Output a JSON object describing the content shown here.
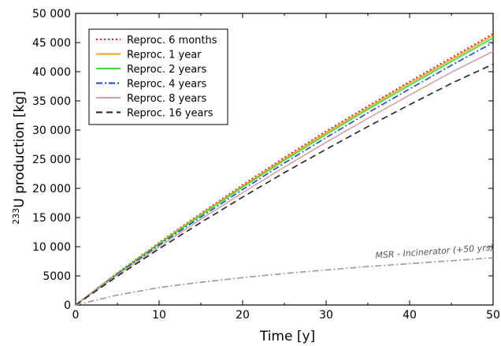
{
  "chart_data": {
    "type": "line",
    "xlabel": "Time [y]",
    "ylabel_sup": "233",
    "ylabel": "U production [kg]",
    "xlim": [
      0,
      50
    ],
    "ylim": [
      0,
      50000
    ],
    "x_ticks": [
      0,
      10,
      20,
      30,
      40,
      50
    ],
    "y_ticks": [
      0,
      5000,
      10000,
      15000,
      20000,
      25000,
      30000,
      35000,
      40000,
      45000,
      50000
    ],
    "x_tick_labels": [
      "0",
      "10",
      "20",
      "30",
      "40",
      "50"
    ],
    "y_tick_labels": [
      "0",
      "5000",
      "10 000",
      "15 000",
      "20 000",
      "25 000",
      "30 000",
      "35 000",
      "40 000",
      "45 000",
      "50 000"
    ],
    "grid": false,
    "legend_position": "top-left",
    "x": [
      0,
      5,
      10,
      15,
      20,
      25,
      30,
      35,
      40,
      45,
      50
    ],
    "series": [
      {
        "name": "Reproc. 6 months",
        "color": "#e8231e",
        "style": "dotted",
        "values": [
          0,
          5500,
          10700,
          15700,
          20600,
          25300,
          29800,
          34100,
          38300,
          42400,
          46500
        ]
      },
      {
        "name": "Reproc. 1 year",
        "color": "#f5a31c",
        "style": "solid",
        "values": [
          0,
          5450,
          10600,
          15550,
          20400,
          25050,
          29550,
          33850,
          38050,
          42100,
          46200
        ]
      },
      {
        "name": "Reproc. 2 years",
        "color": "#33dd33",
        "style": "solid",
        "values": [
          0,
          5400,
          10500,
          15400,
          20200,
          24800,
          29250,
          33550,
          37700,
          41750,
          45800
        ]
      },
      {
        "name": "Reproc. 4 years",
        "color": "#2244cc",
        "style": "dashdot",
        "values": [
          0,
          5300,
          10300,
          15100,
          19800,
          24350,
          28700,
          32950,
          37050,
          41100,
          45000
        ]
      },
      {
        "name": "Reproc. 8 years",
        "color": "#d6a0a0",
        "style": "solid",
        "values": [
          0,
          5150,
          10000,
          14700,
          19250,
          23650,
          27900,
          32000,
          36000,
          39900,
          43500
        ]
      },
      {
        "name": "Reproc. 16 years",
        "color": "#222222",
        "style": "dashed",
        "values": [
          0,
          4950,
          9650,
          14150,
          18500,
          22700,
          26700,
          30600,
          34350,
          38000,
          41300
        ]
      },
      {
        "name": "",
        "color": "#999999",
        "style": "dashdot",
        "values": [
          0,
          1700,
          3000,
          3900,
          4700,
          5400,
          6000,
          6600,
          7100,
          7600,
          8100
        ]
      }
    ],
    "annotations": [
      {
        "text": "MSR - Incinerator (+50 yrs)",
        "x": 43,
        "y": 8700
      }
    ]
  }
}
